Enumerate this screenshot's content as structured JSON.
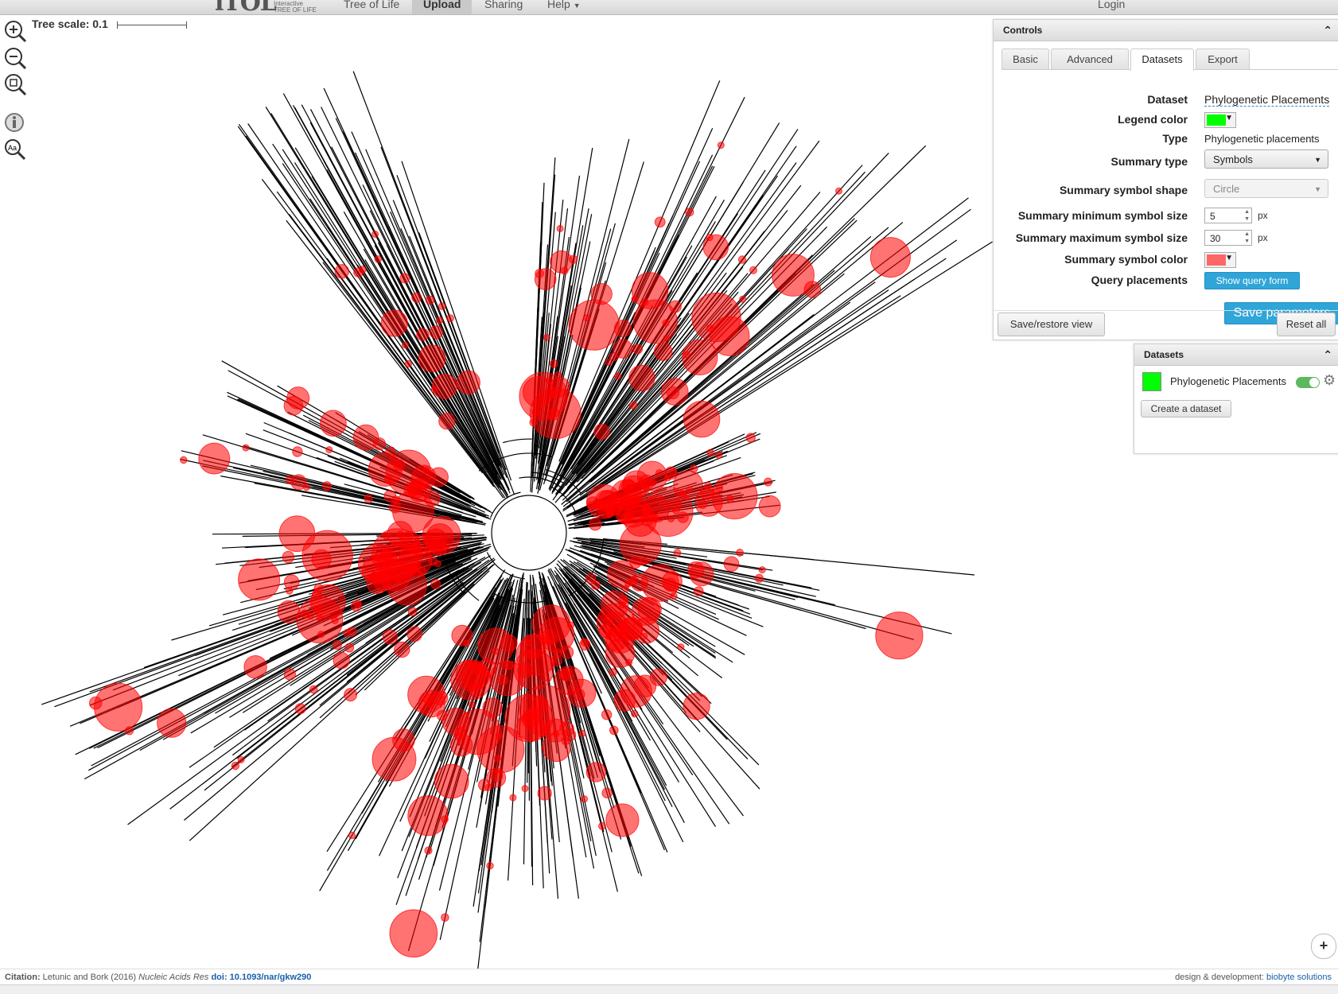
{
  "nav": {
    "logo": "iTOL",
    "logo_sub_1": "Interactive",
    "logo_sub_2": "TREE OF LIFE",
    "tree_of_life": "Tree of Life",
    "upload": "Upload",
    "sharing": "Sharing",
    "help": "Help",
    "login": "Login"
  },
  "toolbar": {
    "tree_scale_label": "Tree scale: 0.1",
    "zoom_in_icon": "zoom-in-icon",
    "zoom_out_icon": "zoom-out-icon",
    "zoom_fit_icon": "zoom-fit-icon",
    "info_icon": "info-icon",
    "label_zoom_icon": "label-zoom-icon"
  },
  "controls": {
    "title": "Controls",
    "tabs": [
      "Basic",
      "Advanced",
      "Datasets",
      "Export"
    ],
    "active_tab": "Datasets",
    "dataset_label": "Dataset",
    "dataset_value": "Phylogenetic Placements",
    "legend_color_label": "Legend color",
    "legend_color": "#00ff00",
    "type_label": "Type",
    "type_value": "Phylogenetic placements",
    "summary_type_label": "Summary type",
    "summary_type_value": "Symbols",
    "summary_shape_label": "Summary symbol shape",
    "summary_shape_value": "Circle",
    "min_size_label": "Summary minimum symbol size",
    "min_size_value": "5",
    "max_size_label": "Summary maximum symbol size",
    "max_size_value": "30",
    "unit_px": "px",
    "symbol_color_label": "Summary symbol color",
    "symbol_color": "#ff6666",
    "query_label": "Query placements",
    "query_button": "Show query form",
    "save_button": "Save parameters",
    "save_restore_button": "Save/restore view",
    "reset_button": "Reset all"
  },
  "datasets_panel": {
    "title": "Datasets",
    "item_name": "Phylogenetic Placements",
    "item_color": "#00ff00",
    "create_button": "Create a dataset"
  },
  "footer": {
    "citation_label": "Citation:",
    "citation_text": "Letunic and Bork (2016)",
    "journal": "Nucleic Acids Res",
    "doi": "doi: 10.1093/nar/gkw290",
    "design_text": "design & development:",
    "biobyte": "biobyte solutions"
  },
  "plus_button": "+",
  "colors": {
    "placement": "#ff0000",
    "branch": "#000000",
    "accent_blue": "#2fa5d8"
  }
}
